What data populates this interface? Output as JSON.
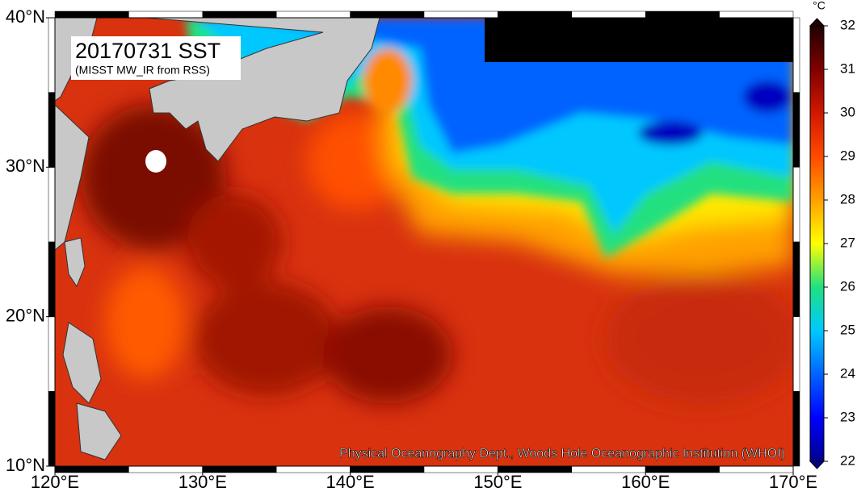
{
  "map": {
    "title": "20170731 SST",
    "subtitle": "(MISST MW_IR from RSS)",
    "credit": "Physical Oceanography Dept., Woods Hole Oceanographic Institution (WHOI)",
    "lonlim": [
      120,
      170
    ],
    "latlim": [
      10,
      40
    ],
    "lon_ticks": [
      {
        "value": 120,
        "label": "120°E"
      },
      {
        "value": 130,
        "label": "130°E"
      },
      {
        "value": 140,
        "label": "140°E"
      },
      {
        "value": 150,
        "label": "150°E"
      },
      {
        "value": 160,
        "label": "160°E"
      },
      {
        "value": 170,
        "label": "170°E"
      }
    ],
    "lat_ticks": [
      {
        "value": 10,
        "label": "10°N"
      },
      {
        "value": 20,
        "label": "20°N"
      },
      {
        "value": 30,
        "label": "30°N"
      },
      {
        "value": 40,
        "label": "40°N"
      }
    ],
    "colorbar": {
      "unit": "°C",
      "lim": [
        22,
        32
      ],
      "ticks": [
        22,
        23,
        24,
        25,
        26,
        27,
        28,
        29,
        30,
        31,
        32
      ],
      "colors": [
        "#00008f",
        "#0000ff",
        "#0064ff",
        "#00c8ff",
        "#20e080",
        "#ffff00",
        "#ffa000",
        "#ff4a00",
        "#d01800",
        "#800000",
        "#200000"
      ]
    }
  }
}
